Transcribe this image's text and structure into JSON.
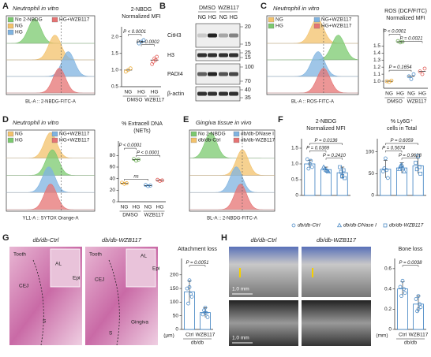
{
  "panel_labels": [
    "A",
    "B",
    "C",
    "D",
    "E",
    "F",
    "G",
    "H"
  ],
  "flow": [
    {
      "title": "Neutrophil in vitro",
      "legend": [
        {
          "name": "No 2-NBDG",
          "color": "#7bc96f"
        },
        {
          "name": "NG",
          "color": "#f3c26b"
        },
        {
          "name": "HG",
          "color": "#7fb3e0"
        },
        {
          "name": "HG+WZB117",
          "color": "#e57373"
        }
      ],
      "xlabel": "BL-A :: 2-NBDG-FITC-A"
    },
    {
      "title": "Neutrophil in vitro",
      "legend": [
        {
          "name": "NG",
          "color": "#f3c26b"
        },
        {
          "name": "HG",
          "color": "#7bc96f"
        },
        {
          "name": "NG+WZB117",
          "color": "#7fb3e0"
        },
        {
          "name": "HG+WZB117",
          "color": "#e57373"
        }
      ],
      "xlabel": "BL-A :: ROS-FITC-A"
    },
    {
      "title": "Neutrophil in vitro",
      "legend": [
        {
          "name": "NG",
          "color": "#f3c26b"
        },
        {
          "name": "HG",
          "color": "#7bc96f"
        },
        {
          "name": "NG+WZB117",
          "color": "#7fb3e0"
        },
        {
          "name": "HG+WZB117",
          "color": "#e57373"
        }
      ],
      "xlabel": "YL1-A :: SYTOX Orange-A"
    },
    {
      "title": "Gingiva tissue in vivo",
      "legend": [
        {
          "name": "No 2-NBDG",
          "color": "#7bc96f"
        },
        {
          "name": "db/db-Ctrl",
          "color": "#f3c26b"
        },
        {
          "name": "db/db-DNase I",
          "color": "#7fb3e0"
        },
        {
          "name": "db/db-WZB117",
          "color": "#e57373"
        }
      ],
      "xlabel": "BL-A :: 2-NBDG-FITC-A"
    }
  ],
  "blot": {
    "groups": [
      "DMSO",
      "WZB117"
    ],
    "lanes": [
      "NG",
      "HG",
      "NG",
      "HG"
    ],
    "rows": [
      {
        "name": "CitH3",
        "markers": [
          20,
          15
        ]
      },
      {
        "name": "H3",
        "markers": [
          25,
          15
        ]
      },
      {
        "name": "PADI4",
        "markers": [
          100,
          70
        ]
      },
      {
        "name": "β-actin",
        "markers": [
          40,
          35
        ]
      }
    ]
  },
  "histology": [
    {
      "title": "db/db-Ctrl",
      "labels": [
        "Tooth",
        "CEJ",
        "AL",
        "Epi",
        "S"
      ]
    },
    {
      "title": "db/db-WZB117",
      "labels": [
        "Tooth",
        "CEJ",
        "AL",
        "Epi",
        "Gingiva",
        "S"
      ]
    }
  ],
  "microct": [
    {
      "title": "db/db-Ctrl",
      "scales": [
        "1.0 mm",
        "1.0 mm"
      ]
    },
    {
      "title": "db/db-WZB117"
    }
  ],
  "chart_data": [
    {
      "type": "dot",
      "title": "2-NBDG",
      "subtitle": "Normalized MFI",
      "ylim": [
        0.5,
        2.3
      ],
      "yticks": [
        0.5,
        {
          "value": 1,
          "label": "1.0"
        },
        1.5,
        {
          "value": 2,
          "label": "2.0"
        }
      ],
      "groups": [
        {
          "name": "DMSO",
          "categories": [
            "NG",
            "HG"
          ]
        },
        {
          "name": "WZB117",
          "categories": [
            "HG"
          ]
        }
      ],
      "series": [
        {
          "color": "#e8a020",
          "value": 1.0,
          "points": [
            1.0,
            0.95,
            1.05
          ]
        },
        {
          "color": "#3a7fc0",
          "value": 1.85,
          "points": [
            1.85,
            1.8,
            1.9
          ]
        },
        {
          "color": "#e0504a",
          "value": 1.3,
          "points": [
            1.35,
            1.18,
            1.4,
            1.25,
            1.3
          ]
        }
      ],
      "annotations": [
        "P < 0.0001",
        "P = 0.0002"
      ]
    },
    {
      "type": "dot",
      "title": "ROS (DCF/FITC)",
      "subtitle": "Normalized MFI",
      "ylim": [
        0.9,
        1.75
      ],
      "yticks": [
        {
          "value": 1,
          "label": "1.0"
        },
        1.1,
        1.2,
        1.3,
        1.4,
        1.5
      ],
      "groups": [
        {
          "name": "DMSO",
          "categories": [
            "NG",
            "HG"
          ]
        },
        {
          "name": "WZB117",
          "categories": [
            "NG",
            "HG"
          ]
        }
      ],
      "series": [
        {
          "color": "#e8a020",
          "value": 1.0,
          "points": [
            0.99,
            1.0,
            1.01
          ]
        },
        {
          "color": "#5aa040",
          "value": 1.56,
          "points": [
            1.55,
            1.57,
            1.56
          ]
        },
        {
          "color": "#3a7fc0",
          "value": 1.07,
          "points": [
            1.03,
            1.07,
            1.1
          ]
        },
        {
          "color": "#e0504a",
          "value": 1.14,
          "points": [
            1.1,
            1.14,
            1.18
          ]
        }
      ],
      "annotations": [
        "P < 0.0001",
        "P = 0.0021",
        "P = 0.1654"
      ]
    },
    {
      "type": "dot",
      "title": "% Extracell DNA",
      "subtitle": "(NETs)",
      "ylim": [
        0,
        105
      ],
      "yticks": [
        0,
        20,
        40,
        60,
        80
      ],
      "groups": [
        {
          "name": "DMSO",
          "categories": [
            "NG",
            "HG"
          ]
        },
        {
          "name": "WZB117",
          "categories": [
            "NG",
            "HG"
          ]
        }
      ],
      "series": [
        {
          "color": "#e8a020",
          "value": 32,
          "points": [
            31,
            33,
            32
          ]
        },
        {
          "color": "#5aa040",
          "value": 73,
          "points": [
            71,
            74,
            73
          ]
        },
        {
          "color": "#3a7fc0",
          "value": 28,
          "points": [
            27,
            29,
            28
          ]
        },
        {
          "color": "#e0504a",
          "value": 37,
          "points": [
            36,
            38,
            37
          ]
        }
      ],
      "annotations": [
        "P < 0.0001",
        "P < 0.0001",
        "ns"
      ]
    },
    {
      "type": "bar",
      "title": "2-NBDG",
      "subtitle": "Normalized MFI",
      "ylim": [
        0,
        1.8
      ],
      "yticks": [
        0,
        0.5,
        {
          "value": 1,
          "label": "1.0"
        },
        1.5
      ],
      "series": [
        {
          "name": "db/db-Ctrl",
          "color": "#3a7fc0",
          "value": 1.0,
          "error": 0.12,
          "points": [
            1.0,
            1.15,
            0.9,
            0.85,
            1.1
          ]
        },
        {
          "name": "db/db-DNase I",
          "color": "#3a7fc0",
          "value": 0.82,
          "error": 0.08,
          "points": [
            0.8,
            0.9,
            0.75,
            0.85,
            0.78
          ]
        },
        {
          "name": "db/db-WZB117",
          "color": "#3a7fc0",
          "value": 0.72,
          "error": 0.18,
          "points": [
            0.6,
            0.9,
            0.55,
            0.75,
            0.8,
            0.62
          ]
        }
      ],
      "annotations": [
        "P = 0.0136",
        "P = 0.0369",
        "P = 0.2410"
      ]
    },
    {
      "type": "bar",
      "title": "% Ly6G⁺",
      "subtitle": "cells in Total",
      "ylim": [
        0,
        130
      ],
      "yticks": [
        0,
        50,
        100
      ],
      "series": [
        {
          "color": "#3a7fc0",
          "value": 60,
          "error": 20,
          "points": [
            85,
            55,
            40,
            62,
            58
          ]
        },
        {
          "color": "#3a7fc0",
          "value": 63,
          "error": 12,
          "points": [
            70,
            60,
            55,
            68,
            62
          ]
        },
        {
          "color": "#3a7fc0",
          "value": 68,
          "error": 18,
          "points": [
            90,
            75,
            50,
            60,
            65
          ]
        }
      ],
      "annotations": [
        "P = 0.6059",
        "P = 0.5674",
        "P = 0.9628"
      ]
    },
    {
      "type": "bar",
      "title": "Attachment loss",
      "ylabel": "(μm)",
      "ylim": [
        0,
        260
      ],
      "yticks": [
        0,
        50,
        100,
        150,
        200
      ],
      "groups": [
        {
          "name": "db/db",
          "categories": [
            "Ctrl",
            "WZB117"
          ]
        }
      ],
      "series": [
        {
          "color": "#3a7fc0",
          "value": 138,
          "error": 40,
          "points": [
            180,
            150,
            120,
            95,
            130,
            155
          ]
        },
        {
          "color": "#3a7fc0",
          "value": 62,
          "error": 18,
          "points": [
            80,
            55,
            45,
            70,
            60,
            62
          ]
        }
      ],
      "annotations": [
        "P = 0.0051"
      ]
    },
    {
      "type": "bar",
      "title": "Bone loss",
      "ylabel": "(mm)",
      "ylim": [
        0,
        0.7
      ],
      "yticks": [
        0,
        0.2,
        0.4,
        0.6
      ],
      "groups": [
        {
          "name": "db/db",
          "categories": [
            "Ctrl",
            "WZB117"
          ]
        }
      ],
      "series": [
        {
          "color": "#3a7fc0",
          "value": 0.4,
          "error": 0.07,
          "points": [
            0.48,
            0.42,
            0.36,
            0.33,
            0.4
          ]
        },
        {
          "color": "#3a7fc0",
          "value": 0.25,
          "error": 0.08,
          "points": [
            0.33,
            0.3,
            0.22,
            0.18,
            0.25,
            0.2
          ]
        }
      ],
      "annotations": [
        "P = 0.0038"
      ]
    }
  ]
}
